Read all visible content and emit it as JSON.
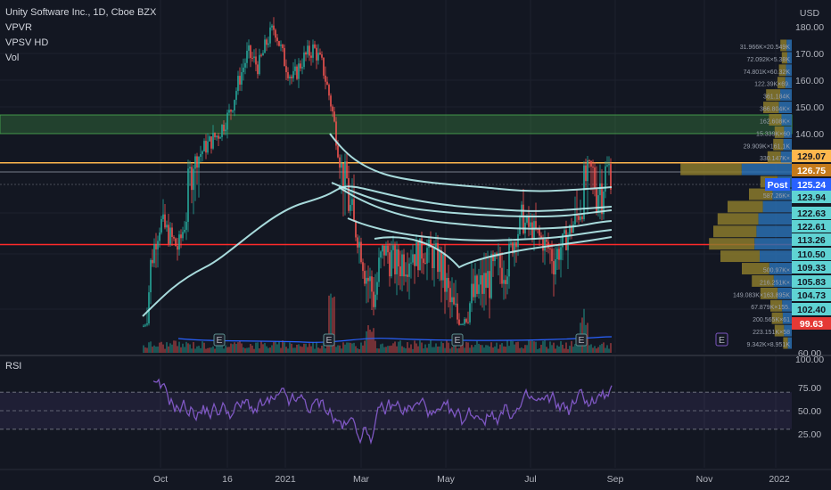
{
  "header": {
    "title": "Unity Software Inc., 1D, Cboe BZX",
    "indicators": [
      "VPVR",
      "VPSV HD",
      "Vol"
    ],
    "currency": "USD"
  },
  "rsi": {
    "label": "RSI",
    "ticks": [
      "100.00",
      "75.00",
      "50.00",
      "25.00"
    ],
    "levels": [
      70,
      50,
      30
    ]
  },
  "price_axis": {
    "ticks": [
      "180.00",
      "170.00",
      "160.00",
      "150.00",
      "140.00",
      "60.00"
    ],
    "tags": [
      {
        "label": "129.07",
        "style": "orange"
      },
      {
        "label": "126.75",
        "style": "orange-dark"
      },
      {
        "label": "125.24",
        "style": "blue"
      },
      {
        "label": "123.94",
        "style": "teal"
      },
      {
        "label": "122.63",
        "style": "teal"
      },
      {
        "label": "122.61",
        "style": "teal"
      },
      {
        "label": "113.26",
        "style": "teal"
      },
      {
        "label": "110.50",
        "style": "teal"
      },
      {
        "label": "109.33",
        "style": "teal"
      },
      {
        "label": "105.83",
        "style": "teal"
      },
      {
        "label": "104.73",
        "style": "teal"
      },
      {
        "label": "102.40",
        "style": "teal"
      },
      {
        "label": "99.63",
        "style": "red"
      }
    ],
    "post_label": "Post"
  },
  "time_axis": [
    "Oct",
    "16",
    "2021",
    "Mar",
    "May",
    "Jul",
    "Sep",
    "Nov",
    "2022"
  ],
  "volume_profile": [
    {
      "label": "31.966K×20.549K",
      "vol": 0.08
    },
    {
      "label": "72.092K×5.38K",
      "vol": 0.07
    },
    {
      "label": "74.801K×60.32K",
      "vol": 0.09
    },
    {
      "label": "122.39K×69.",
      "vol": 0.1
    },
    {
      "label": "361.184K",
      "vol": 0.18
    },
    {
      "label": "366.804K×",
      "vol": 0.2
    },
    {
      "label": "162.608K×",
      "vol": 0.16
    },
    {
      "label": "15.339K×60",
      "vol": 0.12
    },
    {
      "label": "29.909K×161.1K",
      "vol": 0.13
    },
    {
      "label": "330.147K×",
      "vol": 0.17
    },
    {
      "label": "",
      "vol": 0.78
    },
    {
      "label": "216.44",
      "vol": 0.22
    },
    {
      "label": "587.26K×",
      "vol": 0.3
    },
    {
      "label": "",
      "vol": 0.45
    },
    {
      "label": "",
      "vol": 0.52
    },
    {
      "label": "",
      "vol": 0.55
    },
    {
      "label": "",
      "vol": 0.58
    },
    {
      "label": "",
      "vol": 0.5
    },
    {
      "label": "500.97K×",
      "vol": 0.35
    },
    {
      "label": "216.251K×",
      "vol": 0.28
    },
    {
      "label": "149.083K×163.895K",
      "vol": 0.22
    },
    {
      "label": "67.879K×155.",
      "vol": 0.15
    },
    {
      "label": "200.565K×61",
      "vol": 0.14
    },
    {
      "label": "223.151K×58",
      "vol": 0.12
    },
    {
      "label": "9.342K×8.951K",
      "vol": 0.06
    }
  ],
  "earnings_marker": "E",
  "colors": {
    "background": "#131722",
    "up": "#26a69a",
    "down": "#ef5350",
    "ma": "#b8f0f0",
    "rsi": "#7e57c2",
    "support": "#ff2a2a",
    "resistance": "#ffb74d",
    "zone": "#4caf50",
    "post": "#2962ff",
    "tag_teal": "#5fd3d3"
  }
}
